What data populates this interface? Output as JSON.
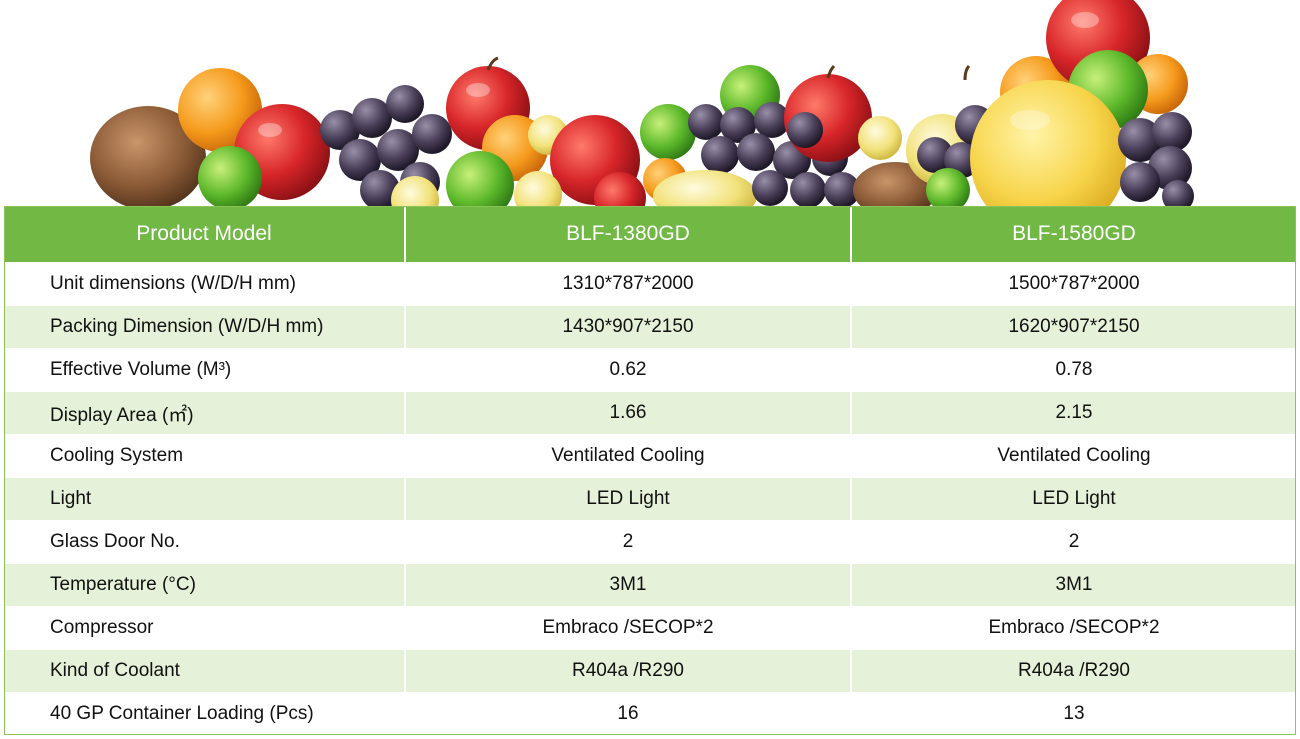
{
  "colors": {
    "header_green": "#72b844",
    "row_light": "#ffffff",
    "row_tint": "#e6f1d9",
    "border_green": "#8dc356"
  },
  "banner": {
    "icon": "fruit-pile-image"
  },
  "table": {
    "headers": [
      "Product Model",
      "BLF-1380GD",
      "BLF-1580GD"
    ],
    "rows": [
      {
        "label": "Unit dimensions (W/D/H mm)",
        "values": [
          "1310*787*2000",
          "1500*787*2000"
        ]
      },
      {
        "label": "Packing Dimension (W/D/H mm)",
        "values": [
          "1430*907*2150",
          "1620*907*2150"
        ]
      },
      {
        "label": "Effective Volume (M³)",
        "values": [
          "0.62",
          "0.78"
        ]
      },
      {
        "label": "Display Area (㎡)",
        "values": [
          "1.66",
          "2.15"
        ]
      },
      {
        "label": "Cooling System",
        "values": [
          "Ventilated Cooling",
          "Ventilated Cooling"
        ]
      },
      {
        "label": "Light",
        "values": [
          "LED Light",
          "LED Light"
        ]
      },
      {
        "label": "Glass Door No.",
        "values": [
          "2",
          "2"
        ]
      },
      {
        "label": "Temperature (°C)",
        "values": [
          "3M1",
          "3M1"
        ]
      },
      {
        "label": "Compressor",
        "values": [
          "Embraco /SECOP*2",
          "Embraco /SECOP*2"
        ]
      },
      {
        "label": "Kind of Coolant",
        "values": [
          "R404a /R290",
          "R404a /R290"
        ]
      },
      {
        "label": "40 GP Container Loading (Pcs)",
        "values": [
          "16",
          "13"
        ]
      }
    ]
  }
}
